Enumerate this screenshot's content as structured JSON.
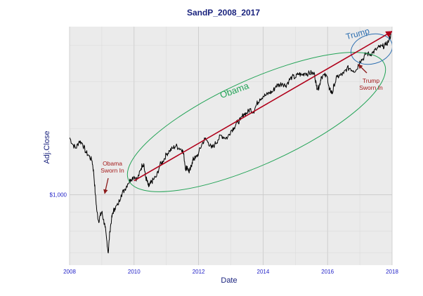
{
  "chart_data": {
    "type": "line",
    "title": "SandP_2008_2017",
    "xlabel": "Date",
    "ylabel": "Adj.Close",
    "x_ticks": [
      "2008",
      "2010",
      "2012",
      "2014",
      "2016",
      "2018"
    ],
    "y_ticks": [
      "$1,000"
    ],
    "xlim": [
      2008,
      2018
    ],
    "ylim_log": [
      650,
      2800
    ],
    "series": [
      {
        "name": "Adj.Close",
        "x": [
          2008.0,
          2008.1,
          2008.2,
          2008.3,
          2008.4,
          2008.5,
          2008.6,
          2008.7,
          2008.75,
          2008.8,
          2008.85,
          2008.9,
          2008.95,
          2009.0,
          2009.05,
          2009.1,
          2009.15,
          2009.2,
          2009.25,
          2009.3,
          2009.35,
          2009.4,
          2009.5,
          2009.6,
          2009.7,
          2009.8,
          2009.9,
          2010.0,
          2010.1,
          2010.2,
          2010.25,
          2010.3,
          2010.35,
          2010.4,
          2010.45,
          2010.5,
          2010.55,
          2010.6,
          2010.7,
          2010.8,
          2010.9,
          2011.0,
          2011.1,
          2011.2,
          2011.3,
          2011.4,
          2011.5,
          2011.55,
          2011.6,
          2011.65,
          2011.7,
          2011.75,
          2011.8,
          2011.85,
          2011.9,
          2012.0,
          2012.1,
          2012.2,
          2012.3,
          2012.4,
          2012.5,
          2012.6,
          2012.7,
          2012.8,
          2012.9,
          2013.0,
          2013.1,
          2013.2,
          2013.3,
          2013.4,
          2013.5,
          2013.6,
          2013.7,
          2013.8,
          2013.9,
          2014.0,
          2014.1,
          2014.2,
          2014.3,
          2014.4,
          2014.5,
          2014.6,
          2014.7,
          2014.8,
          2014.9,
          2015.0,
          2015.1,
          2015.2,
          2015.3,
          2015.4,
          2015.5,
          2015.6,
          2015.65,
          2015.7,
          2015.75,
          2015.8,
          2015.9,
          2016.0,
          2016.05,
          2016.1,
          2016.15,
          2016.2,
          2016.3,
          2016.4,
          2016.5,
          2016.6,
          2016.7,
          2016.8,
          2016.9,
          2017.0,
          2017.1,
          2017.2,
          2017.3,
          2017.4,
          2017.5,
          2017.6,
          2017.7,
          2017.8,
          2017.9,
          2017.97
        ],
        "y": [
          1420,
          1360,
          1330,
          1390,
          1370,
          1300,
          1270,
          1230,
          1140,
          1000,
          900,
          850,
          880,
          900,
          860,
          820,
          760,
          700,
          800,
          860,
          900,
          920,
          940,
          1000,
          1030,
          1070,
          1100,
          1120,
          1100,
          1160,
          1200,
          1210,
          1120,
          1090,
          1050,
          1070,
          1080,
          1100,
          1120,
          1200,
          1230,
          1280,
          1310,
          1330,
          1350,
          1330,
          1320,
          1260,
          1170,
          1190,
          1150,
          1170,
          1220,
          1250,
          1250,
          1290,
          1360,
          1410,
          1380,
          1330,
          1360,
          1400,
          1440,
          1420,
          1420,
          1480,
          1510,
          1560,
          1580,
          1640,
          1650,
          1690,
          1660,
          1740,
          1800,
          1830,
          1840,
          1870,
          1880,
          1950,
          1960,
          1980,
          1950,
          2010,
          2060,
          2050,
          2100,
          2080,
          2110,
          2100,
          2110,
          2090,
          1950,
          1920,
          1950,
          2060,
          2080,
          2050,
          1900,
          1890,
          1860,
          1960,
          2060,
          2080,
          2100,
          2170,
          2170,
          2140,
          2150,
          2270,
          2300,
          2380,
          2360,
          2390,
          2430,
          2470,
          2480,
          2500,
          2570,
          2670
        ]
      }
    ],
    "trend_line": {
      "from": [
        2010.0,
        1090
      ],
      "to": [
        2018.0,
        2720
      ]
    },
    "annotations": {
      "obama_label": "Obama",
      "trump_label": "Trump",
      "obama_sworn": [
        "Obama",
        "Sworn In"
      ],
      "trump_sworn": [
        "Trump",
        "Sworn In"
      ]
    },
    "colors": {
      "line": "#000000",
      "trend": "#b0001a",
      "obama_ellipse": "#22a356",
      "trump_ellipse": "#2d6fb0",
      "annot_text": "#a51c1c",
      "panel_bg": "#ebebeb",
      "axis_text": "#2323c8",
      "title": "#1a237e"
    }
  }
}
